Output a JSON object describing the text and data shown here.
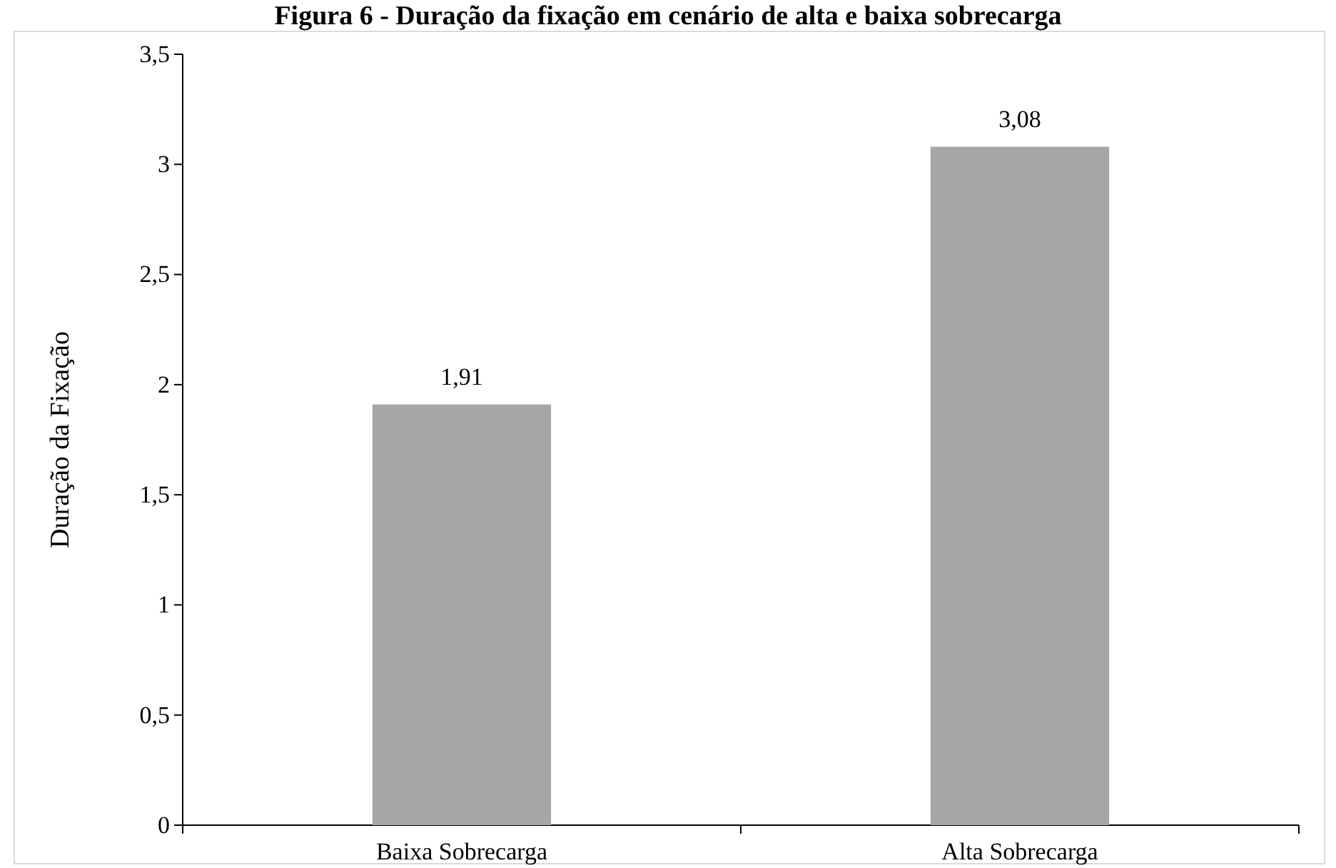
{
  "chart_data": {
    "type": "bar",
    "title": "Figura 6 - Duração da fixação em cenário de alta e baixa sobrecarga",
    "ylabel": "Duração da Fixação",
    "categories": [
      "Baixa Sobrecarga",
      "Alta Sobrecarga"
    ],
    "values": [
      1.91,
      3.08
    ],
    "color": "#a6a6a6",
    "value_labels": [
      "1,91",
      "3,08"
    ],
    "ylim": [
      0,
      3.5
    ],
    "yticks": [
      {
        "value": 0,
        "label": "0"
      },
      {
        "value": 0.5,
        "label": "0,5"
      },
      {
        "value": 1,
        "label": "1"
      },
      {
        "value": 1.5,
        "label": "1,5"
      },
      {
        "value": 2,
        "label": "2"
      },
      {
        "value": 2.5,
        "label": "2,5"
      },
      {
        "value": 3,
        "label": "3"
      },
      {
        "value": 3.5,
        "label": "3,5"
      }
    ],
    "grid": false
  }
}
